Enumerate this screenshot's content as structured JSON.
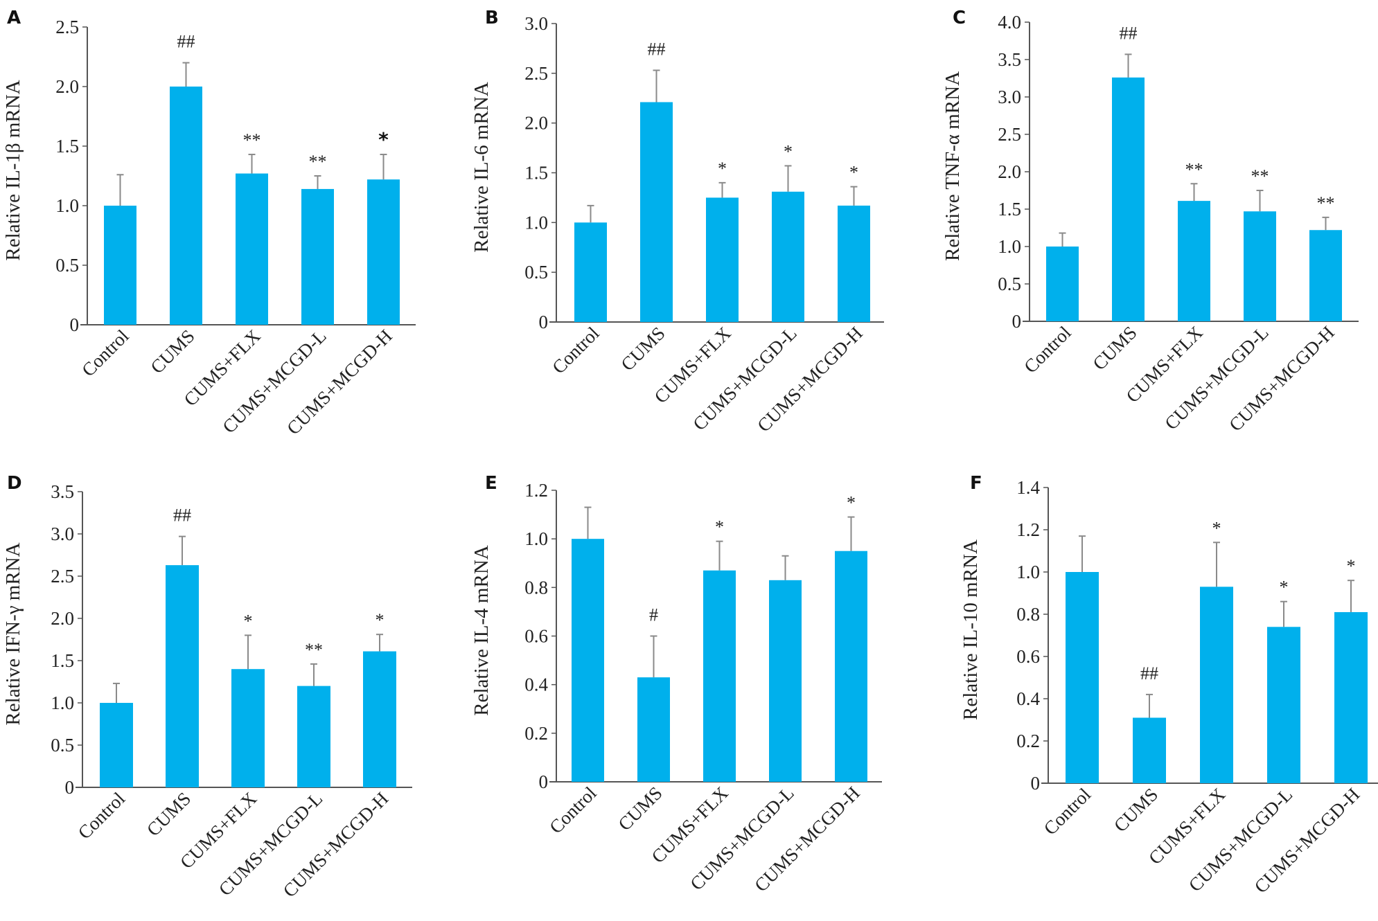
{
  "figure": {
    "bar_color": "#00b0ec",
    "error_color": "#8a8a8a",
    "axis_color": "#555555"
  },
  "chart_data": [
    {
      "panel": "A",
      "type": "bar",
      "title": "",
      "xlabel": "",
      "ylabel": "Relative IL-1β mRNA",
      "ylim": [
        0,
        2.5
      ],
      "yticks": [
        "0",
        "0.5",
        "1.0",
        "1.5",
        "2.0",
        "2.5"
      ],
      "ytick_values": [
        0,
        0.5,
        1.0,
        1.5,
        2.0,
        2.5
      ],
      "categories": [
        "Control",
        "CUMS",
        "CUMS+FLX",
        "CUMS+MCGD-L",
        "CUMS+MCGD-H"
      ],
      "values": [
        1.0,
        2.0,
        1.27,
        1.14,
        1.22
      ],
      "error_upper": [
        1.26,
        2.2,
        1.43,
        1.25,
        1.43
      ],
      "annotations": [
        "",
        "##",
        "**",
        "**",
        "*"
      ],
      "annotation_bold": [
        false,
        false,
        false,
        false,
        true
      ]
    },
    {
      "panel": "B",
      "type": "bar",
      "title": "",
      "xlabel": "",
      "ylabel": "Relative IL-6 mRNA",
      "ylim": [
        0,
        3.0
      ],
      "yticks": [
        "0",
        "0.5",
        "1.0",
        "1.5",
        "2.0",
        "2.5",
        "3.0"
      ],
      "ytick_values": [
        0,
        0.5,
        1.0,
        1.5,
        2.0,
        2.5,
        3.0
      ],
      "categories": [
        "Control",
        "CUMS",
        "CUMS+FLX",
        "CUMS+MCGD-L",
        "CUMS+MCGD-H"
      ],
      "values": [
        1.0,
        2.21,
        1.25,
        1.31,
        1.17
      ],
      "error_upper": [
        1.17,
        2.53,
        1.4,
        1.57,
        1.36
      ],
      "annotations": [
        "",
        "##",
        "*",
        "*",
        "*"
      ],
      "annotation_bold": [
        false,
        false,
        false,
        false,
        false
      ]
    },
    {
      "panel": "C",
      "type": "bar",
      "title": "",
      "xlabel": "",
      "ylabel": "Relative TNF-α mRNA",
      "ylim": [
        0,
        4.0
      ],
      "yticks": [
        "0",
        "0.5",
        "1.0",
        "1.5",
        "2.0",
        "2.5",
        "3.0",
        "3.5",
        "4.0"
      ],
      "ytick_values": [
        0,
        0.5,
        1.0,
        1.5,
        2.0,
        2.5,
        3.0,
        3.5,
        4.0
      ],
      "categories": [
        "Control",
        "CUMS",
        "CUMS+FLX",
        "CUMS+MCGD-L",
        "CUMS+MCGD-H"
      ],
      "values": [
        1.0,
        3.26,
        1.61,
        1.47,
        1.22
      ],
      "error_upper": [
        1.18,
        3.57,
        1.84,
        1.75,
        1.39
      ],
      "annotations": [
        "",
        "##",
        "**",
        "**",
        "**"
      ],
      "annotation_bold": [
        false,
        false,
        false,
        false,
        false
      ]
    },
    {
      "panel": "D",
      "type": "bar",
      "title": "",
      "xlabel": "",
      "ylabel": "Relative IFN-γ mRNA",
      "ylim": [
        0,
        3.5
      ],
      "yticks": [
        "0",
        "0.5",
        "1.0",
        "1.5",
        "2.0",
        "2.5",
        "3.0",
        "3.5"
      ],
      "ytick_values": [
        0,
        0.5,
        1.0,
        1.5,
        2.0,
        2.5,
        3.0,
        3.5
      ],
      "categories": [
        "Control",
        "CUMS",
        "CUMS+FLX",
        "CUMS+MCGD-L",
        "CUMS+MCGD-H"
      ],
      "values": [
        1.0,
        2.63,
        1.4,
        1.2,
        1.61
      ],
      "error_upper": [
        1.23,
        2.97,
        1.8,
        1.46,
        1.81
      ],
      "annotations": [
        "",
        "##",
        "*",
        "**",
        "*"
      ],
      "annotation_bold": [
        false,
        false,
        false,
        false,
        false
      ]
    },
    {
      "panel": "E",
      "type": "bar",
      "title": "",
      "xlabel": "",
      "ylabel": "Relative IL-4 mRNA",
      "ylim": [
        0,
        1.2
      ],
      "yticks": [
        "0",
        "0.2",
        "0.4",
        "0.6",
        "0.8",
        "1.0",
        "1.2"
      ],
      "ytick_values": [
        0,
        0.2,
        0.4,
        0.6,
        0.8,
        1.0,
        1.2
      ],
      "categories": [
        "Control",
        "CUMS",
        "CUMS+FLX",
        "CUMS+MCGD-L",
        "CUMS+MCGD-H"
      ],
      "values": [
        1.0,
        0.43,
        0.87,
        0.83,
        0.95
      ],
      "error_upper": [
        1.13,
        0.6,
        0.99,
        0.93,
        1.09
      ],
      "annotations": [
        "",
        "#",
        "*",
        "",
        "*"
      ],
      "annotation_bold": [
        false,
        false,
        false,
        false,
        false
      ]
    },
    {
      "panel": "F",
      "type": "bar",
      "title": "",
      "xlabel": "",
      "ylabel": "Relative IL-10 mRNA",
      "ylim": [
        0,
        1.4
      ],
      "yticks": [
        "0",
        "0.2",
        "0.4",
        "0.6",
        "0.8",
        "1.0",
        "1.2",
        "1.4"
      ],
      "ytick_values": [
        0,
        0.2,
        0.4,
        0.6,
        0.8,
        1.0,
        1.2,
        1.4
      ],
      "categories": [
        "Control",
        "CUMS",
        "CUMS+FLX",
        "CUMS+MCGD-L",
        "CUMS+MCGD-H"
      ],
      "values": [
        1.0,
        0.31,
        0.93,
        0.74,
        0.81
      ],
      "error_upper": [
        1.17,
        0.42,
        1.14,
        0.86,
        0.96
      ],
      "annotations": [
        "",
        "##",
        "*",
        "*",
        "*"
      ],
      "annotation_bold": [
        false,
        false,
        false,
        false,
        false
      ]
    }
  ]
}
